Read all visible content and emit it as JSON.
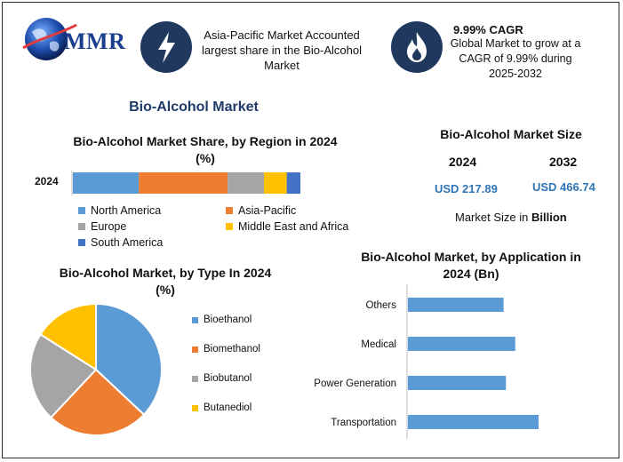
{
  "header": {
    "logo_text": "MMR",
    "info1": {
      "text": "Asia-Pacific Market Accounted largest share in the Bio-Alcohol Market",
      "icon": "lightning-icon"
    },
    "info2": {
      "title": "9.99% CAGR",
      "text": "Global Market to grow at a CAGR of 9.99% during 2025-2032",
      "icon": "flame-icon"
    }
  },
  "main_title": "Bio-Alcohol Market",
  "market_size": {
    "title": "Bio-Alcohol Market Size",
    "year1": "2024",
    "year2": "2032",
    "value1": "USD 217.89",
    "value2": "USD 466.74",
    "unit_prefix": "Market Size in ",
    "unit_bold": "Billion"
  },
  "colors": {
    "blue": "#5b9bd5",
    "orange": "#ed7d31",
    "gray": "#a5a5a5",
    "yellow": "#ffc000",
    "darkblue": "#4472c4",
    "bar": "#5b9bd5"
  },
  "chart_data": [
    {
      "type": "bar",
      "orientation": "horizontal-stacked",
      "title_line1": "Bio-Alcohol Market Share, by Region in 2024",
      "title_line2": "(%)",
      "categories": [
        "2024"
      ],
      "series": [
        {
          "name": "North America",
          "values": [
            29
          ],
          "color": "#5b9bd5"
        },
        {
          "name": "Asia-Pacific",
          "values": [
            39
          ],
          "color": "#ed7d31"
        },
        {
          "name": "Europe",
          "values": [
            16
          ],
          "color": "#a5a5a5"
        },
        {
          "name": "Middle East and Africa",
          "values": [
            10
          ],
          "color": "#ffc000"
        },
        {
          "name": "South America",
          "values": [
            6
          ],
          "color": "#4472c4"
        }
      ]
    },
    {
      "type": "pie",
      "title_line1": "Bio-Alcohol Market, by Type In 2024",
      "title_line2": "(%)",
      "slices": [
        {
          "name": "Bioethanol",
          "value": 37,
          "color": "#5b9bd5"
        },
        {
          "name": "Biomethanol",
          "value": 25,
          "color": "#ed7d31"
        },
        {
          "name": "Biobutanol",
          "value": 22,
          "color": "#a5a5a5"
        },
        {
          "name": "Butanediol",
          "value": 16,
          "color": "#ffc000"
        }
      ]
    },
    {
      "type": "bar",
      "orientation": "horizontal",
      "title_line1": "Bio-Alcohol Market, by Application in",
      "title_line2": "2024 (Bn)",
      "categories": [
        "Others",
        "Medical",
        "Power Generation",
        "Transportation"
      ],
      "values": [
        41,
        46,
        42,
        56
      ],
      "xlim": [
        0,
        80
      ]
    }
  ]
}
